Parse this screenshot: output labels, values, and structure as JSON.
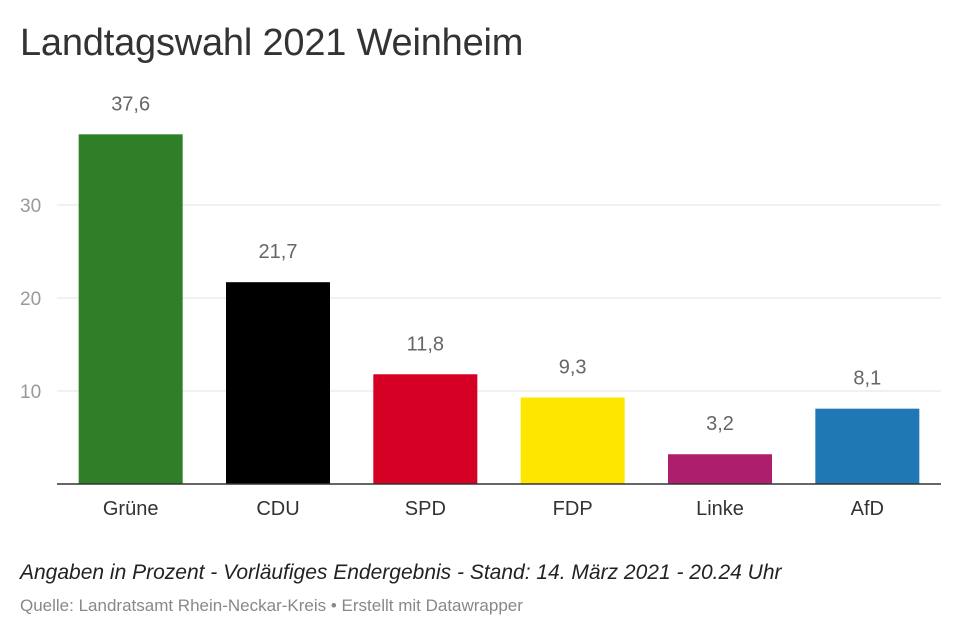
{
  "title": "Landtagswahl 2021 Weinheim",
  "notes": "Angaben in Prozent - Vorläufiges Endergebnis - Stand: 14. März 2021 - 20.24 Uhr",
  "source": "Quelle: Landratsamt Rhein-Neckar-Kreis • Erstellt mit Datawrapper",
  "chart_data": {
    "type": "bar",
    "title": "Landtagswahl 2021 Weinheim",
    "categories": [
      "Grüne",
      "CDU",
      "SPD",
      "FDP",
      "Linke",
      "AfD"
    ],
    "values": [
      37.6,
      21.7,
      11.8,
      9.3,
      3.2,
      8.1
    ],
    "value_labels": [
      "37,6",
      "21,7",
      "11,8",
      "9,3",
      "3,2",
      "8,1"
    ],
    "colors": [
      "#2e7f27",
      "#000000",
      "#d50023",
      "#ffe600",
      "#ad1f6c",
      "#1f78b4"
    ],
    "yticks": [
      10,
      20,
      30
    ],
    "ytick_labels": [
      "10",
      "20",
      "30"
    ],
    "ylim": [
      0,
      40
    ],
    "xlabel": "",
    "ylabel": "",
    "grid": true,
    "legend": "none"
  }
}
